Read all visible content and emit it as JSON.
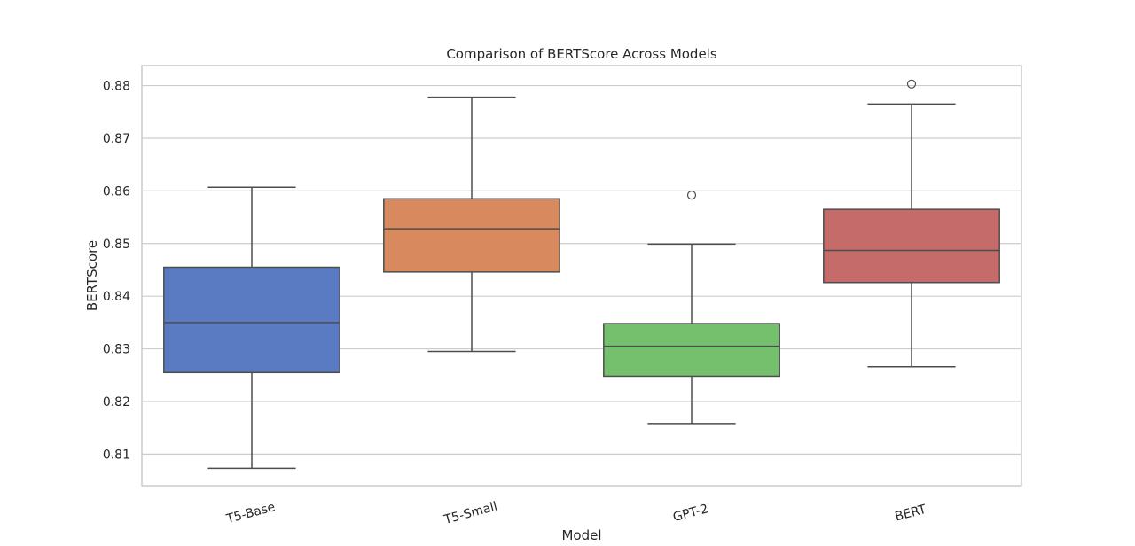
{
  "chart_data": {
    "type": "box",
    "title": "Comparison of BERTScore Across Models",
    "xlabel": "Model",
    "ylabel": "BERTScore",
    "ylim": [
      0.804,
      0.8838
    ],
    "yticks": [
      "0.81",
      "0.82",
      "0.83",
      "0.84",
      "0.85",
      "0.86",
      "0.87",
      "0.88"
    ],
    "grid": "horizontal",
    "categories": [
      "T5-Base",
      "T5-Small",
      "GPT-2",
      "BERT"
    ],
    "boxes": [
      {
        "category": "T5-Base",
        "whisker_low": 0.8073,
        "q1": 0.8255,
        "median": 0.835,
        "q3": 0.8455,
        "whisker_high": 0.8607,
        "outliers": [],
        "color": "#5a7bc1"
      },
      {
        "category": "T5-Small",
        "whisker_low": 0.8295,
        "q1": 0.8446,
        "median": 0.8528,
        "q3": 0.8585,
        "whisker_high": 0.8778,
        "outliers": [],
        "color": "#d8895d"
      },
      {
        "category": "GPT-2",
        "whisker_low": 0.8158,
        "q1": 0.8248,
        "median": 0.8305,
        "q3": 0.8348,
        "whisker_high": 0.8499,
        "outliers": [
          0.8592
        ],
        "color": "#75c06d"
      },
      {
        "category": "BERT",
        "whisker_low": 0.8266,
        "q1": 0.8426,
        "median": 0.8487,
        "q3": 0.8565,
        "whisker_high": 0.8765,
        "outliers": [
          0.8803
        ],
        "color": "#c56c6b"
      }
    ]
  }
}
